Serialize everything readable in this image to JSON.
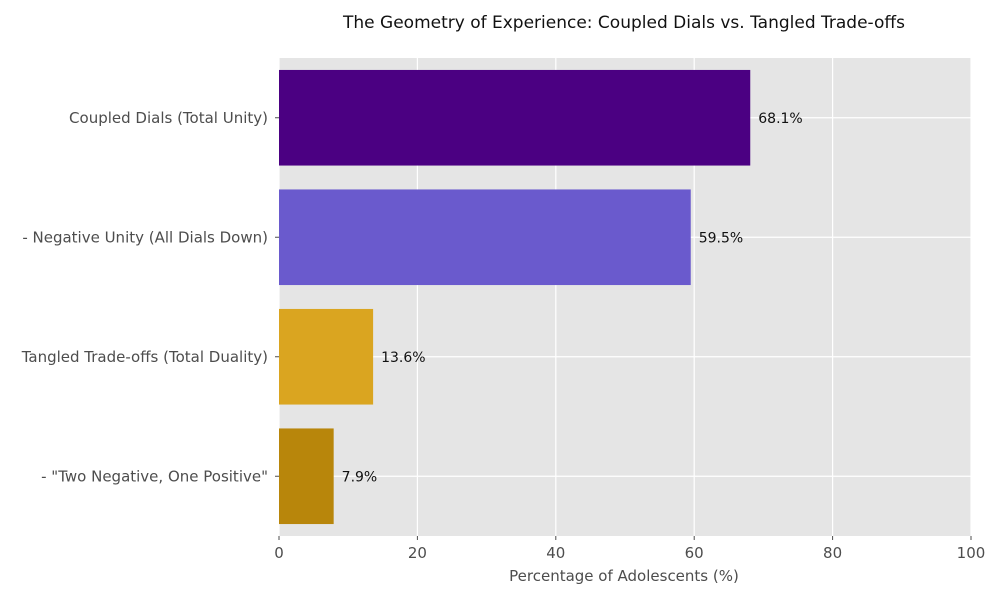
{
  "chart_data": {
    "type": "bar",
    "orientation": "horizontal",
    "title": "The Geometry of Experience: Coupled Dials vs. Tangled Trade-offs",
    "xlabel": "Percentage of Adolescents (%)",
    "ylabel": "",
    "xlim": [
      0,
      100
    ],
    "xticks": [
      0,
      20,
      40,
      60,
      80,
      100
    ],
    "grid": true,
    "categories": [
      "Coupled Dials (Total Unity)",
      "- Negative Unity (All Dials Down)",
      "Tangled Trade-offs (Total Duality)",
      "- \"Two Negative, One Positive\""
    ],
    "values": [
      68.1,
      59.5,
      13.6,
      7.9
    ],
    "data_labels": [
      "68.1%",
      "59.5%",
      "13.6%",
      "7.9%"
    ],
    "colors": [
      "#4b0082",
      "#6a5acd",
      "#daa520",
      "#b8860b"
    ],
    "plot_background": "#e5e5e5",
    "grid_color": "#ffffff"
  }
}
